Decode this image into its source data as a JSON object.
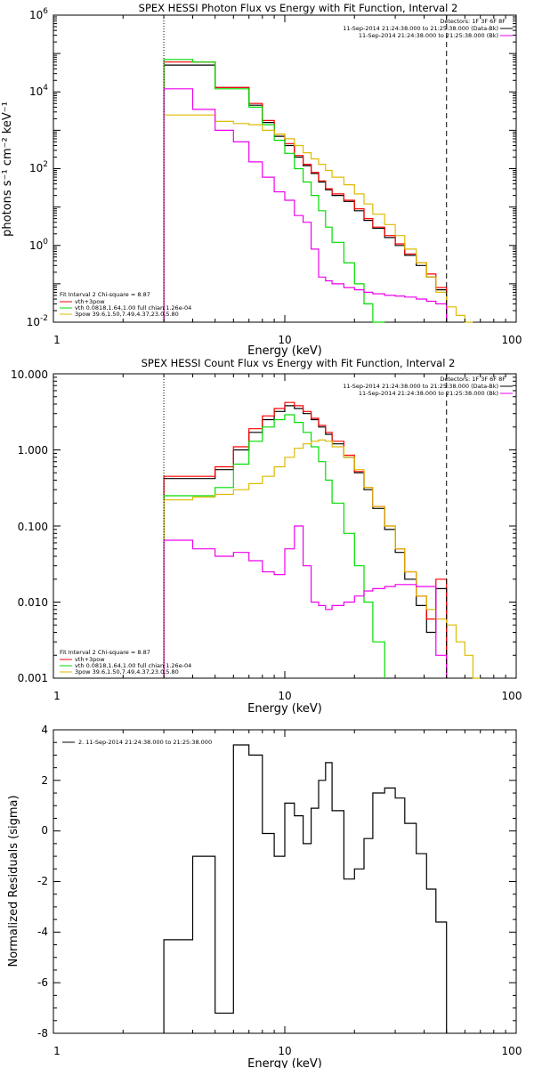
{
  "chart_data": [
    {
      "type": "line",
      "title": "SPEX HESSI Photon Flux vs Energy with Fit Function, Interval 2",
      "xlabel": "Energy (keV)",
      "ylabel": "photons s⁻¹ cm⁻² keV⁻¹",
      "x_scale": "log",
      "y_scale": "log",
      "xlim": [
        1,
        100
      ],
      "ylim": [
        0.01,
        1000000
      ],
      "x_ticks": [
        "1",
        "10",
        "100"
      ],
      "y_ticks": [
        {
          "base": "10",
          "exp": "-2",
          "value": 0.01
        },
        {
          "base": "10",
          "exp": "0",
          "value": 1
        },
        {
          "base": "10",
          "exp": "2",
          "value": 100
        },
        {
          "base": "10",
          "exp": "4",
          "value": 10000
        },
        {
          "base": "10",
          "exp": "6",
          "value": 1000000
        }
      ],
      "legend_top_right": [
        "Detectors: 1F 3F 6F 8F",
        "11-Sep-2014 21:24:38.000 to 21:25:38.000 (Data-Bk)",
        "11-Sep-2014 21:24:38.000 to 21:25:38.000 (Bk)"
      ],
      "legend_bottom_left": [
        "Fit Interval 2   Chi-square = 8.87",
        "vth+3pow",
        "vth 0.0818,1.64,1.00  full chian 1.26e-04",
        "3pow 39.6,1.50,7.49,4.37,23.0,5.80"
      ],
      "vlines": [
        3,
        50
      ],
      "bin_edges": [
        3,
        4,
        5,
        6,
        7,
        8,
        9,
        10,
        11,
        12,
        13,
        14,
        15,
        16,
        18,
        20,
        22,
        24,
        27,
        30,
        33,
        37,
        41,
        45,
        50,
        55,
        60,
        65,
        70,
        75
      ],
      "series": [
        {
          "name": "Data-Bk",
          "color": "#000000",
          "values": [
            50000,
            50000,
            13000,
            13000,
            4500,
            1600,
            700,
            400,
            200,
            120,
            75,
            45,
            28,
            20,
            14,
            8,
            4.5,
            2.8,
            1.6,
            1.0,
            0.55,
            0.3,
            0.15,
            0.07,
            null,
            null,
            null,
            null,
            null
          ]
        },
        {
          "name": "vth+3pow",
          "color": "#ff0000",
          "values": [
            60000,
            60000,
            13000,
            13000,
            5000,
            1800,
            800,
            450,
            220,
            130,
            80,
            48,
            30,
            22,
            15,
            9,
            5,
            3,
            1.8,
            1.1,
            0.6,
            0.35,
            0.18,
            0.08,
            null,
            null,
            null,
            null,
            null
          ]
        },
        {
          "name": "vth",
          "color": "#00dd00",
          "values": [
            70000,
            60000,
            12000,
            12000,
            4000,
            1400,
            550,
            250,
            100,
            45,
            20,
            8,
            3,
            1.2,
            0.35,
            0.1,
            0.03,
            0.01,
            null,
            null,
            null,
            null,
            null,
            null,
            null,
            null,
            null,
            null,
            null
          ]
        },
        {
          "name": "3pow",
          "color": "#ddbb00",
          "values": [
            2500,
            2500,
            1700,
            1500,
            1400,
            1000,
            800,
            600,
            400,
            260,
            180,
            130,
            90,
            60,
            38,
            22,
            12,
            6.5,
            3.5,
            1.8,
            0.8,
            0.35,
            0.15,
            0.06,
            0.025,
            0.015,
            0.01,
            null,
            null
          ]
        },
        {
          "name": "Bk",
          "color": "#ee00ee",
          "values": [
            12000,
            3500,
            1000,
            500,
            150,
            60,
            25,
            15,
            6,
            4,
            0.8,
            0.15,
            0.12,
            0.1,
            0.08,
            0.07,
            0.06,
            0.055,
            0.05,
            0.048,
            0.045,
            0.04,
            0.035,
            0.03,
            null,
            null,
            null,
            null,
            null
          ]
        }
      ]
    },
    {
      "type": "line",
      "title": "SPEX HESSI Count Flux vs Energy with Fit Function, Interval 2",
      "xlabel": "Energy (keV)",
      "x_scale": "log",
      "y_scale": "log",
      "xlim": [
        1,
        100
      ],
      "ylim": [
        0.001,
        10
      ],
      "x_ticks": [
        "1",
        "10",
        "100"
      ],
      "y_ticks": [
        "10.000",
        "1.000",
        "0.100",
        "0.010",
        "0.001"
      ],
      "legend_top_right": [
        "Detectors: 1F 3F 6F 8F",
        "11-Sep-2014 21:24:38.000 to 21:25:38.000 (Data-Bk)",
        "11-Sep-2014 21:24:38.000 to 21:25:38.000 (Bk)"
      ],
      "legend_bottom_left": [
        "Fit Interval 2   Chi-square = 8.87",
        "vth+3pow",
        "vth 0.0818,1.64,1.00  full chian 1.26e-04",
        "3pow 39.6,1.50,7.49,4.37,23.0,5.80"
      ],
      "vlines": [
        3,
        50
      ],
      "bin_edges": [
        3,
        4,
        5,
        6,
        7,
        8,
        9,
        10,
        11,
        12,
        13,
        14,
        15,
        16,
        18,
        20,
        22,
        24,
        27,
        30,
        33,
        37,
        41,
        45,
        50,
        55,
        60,
        65,
        70,
        75
      ],
      "series": [
        {
          "name": "Data-Bk",
          "color": "#000000",
          "values": [
            0.42,
            0.42,
            0.55,
            1.0,
            1.7,
            2.5,
            3.2,
            3.8,
            3.5,
            3.0,
            2.5,
            2.0,
            1.6,
            1.2,
            0.8,
            0.5,
            0.3,
            0.17,
            0.09,
            0.045,
            0.02,
            0.009,
            0.004,
            0.015,
            null,
            null,
            null,
            null,
            null
          ]
        },
        {
          "name": "vth+3pow",
          "color": "#ff0000",
          "values": [
            0.45,
            0.45,
            0.6,
            1.1,
            1.9,
            2.8,
            3.5,
            4.2,
            3.8,
            3.2,
            2.6,
            2.1,
            1.7,
            1.3,
            0.85,
            0.52,
            0.32,
            0.18,
            0.1,
            0.05,
            0.025,
            0.012,
            0.006,
            0.02,
            null,
            null,
            null,
            null,
            null
          ]
        },
        {
          "name": "vth",
          "color": "#00dd00",
          "values": [
            0.25,
            0.25,
            0.32,
            0.65,
            1.3,
            2.0,
            2.5,
            2.9,
            2.3,
            1.7,
            1.1,
            0.7,
            0.4,
            0.2,
            0.08,
            0.03,
            0.01,
            0.003,
            null,
            null,
            null,
            null,
            null,
            null,
            null,
            null,
            null,
            null,
            null
          ]
        },
        {
          "name": "3pow",
          "color": "#ddbb00",
          "values": [
            0.22,
            0.24,
            0.26,
            0.3,
            0.36,
            0.45,
            0.6,
            0.8,
            1.05,
            1.2,
            1.3,
            1.35,
            1.3,
            1.1,
            0.8,
            0.55,
            0.32,
            0.18,
            0.1,
            0.05,
            0.025,
            0.012,
            0.008,
            0.006,
            0.005,
            0.003,
            0.002,
            0.001,
            null
          ]
        },
        {
          "name": "Bk",
          "color": "#ee00ee",
          "values": [
            0.065,
            0.05,
            0.04,
            0.045,
            0.035,
            0.025,
            0.023,
            0.05,
            0.1,
            0.03,
            0.01,
            0.009,
            0.008,
            0.009,
            0.01,
            0.012,
            0.014,
            0.015,
            0.016,
            0.017,
            0.017,
            0.016,
            0.016,
            0.002,
            null,
            null,
            null,
            null,
            null
          ]
        }
      ]
    },
    {
      "type": "line",
      "title": "",
      "xlabel": "Energy (keV)",
      "ylabel": "Normalized Residuals (sigma)",
      "x_scale": "log",
      "xlim": [
        1,
        100
      ],
      "ylim": [
        -8,
        4
      ],
      "x_ticks": [
        "1",
        "10",
        "100"
      ],
      "y_ticks": [
        "4",
        "2",
        "0",
        "-2",
        "-4",
        "-6",
        "-8"
      ],
      "legend": [
        "2. 11-Sep-2014 21:24:38.000 to 21:25:38.000"
      ],
      "bin_edges": [
        3,
        4,
        5,
        6,
        7,
        8,
        9,
        10,
        11,
        12,
        13,
        14,
        15,
        16,
        18,
        20,
        22,
        24,
        27,
        30,
        33,
        37,
        41,
        45,
        50
      ],
      "series": [
        {
          "name": "2. 11-Sep-2014 21:24:38.000 to 21:25:38.000",
          "color": "#000000",
          "values": [
            -4.3,
            -1.0,
            -7.2,
            3.4,
            3.0,
            -0.1,
            -1.0,
            1.1,
            0.6,
            -0.5,
            0.9,
            2.0,
            2.7,
            0.8,
            -1.9,
            -1.5,
            -0.3,
            1.5,
            1.7,
            1.3,
            0.3,
            -0.9,
            -2.3,
            -3.6
          ]
        }
      ]
    }
  ]
}
